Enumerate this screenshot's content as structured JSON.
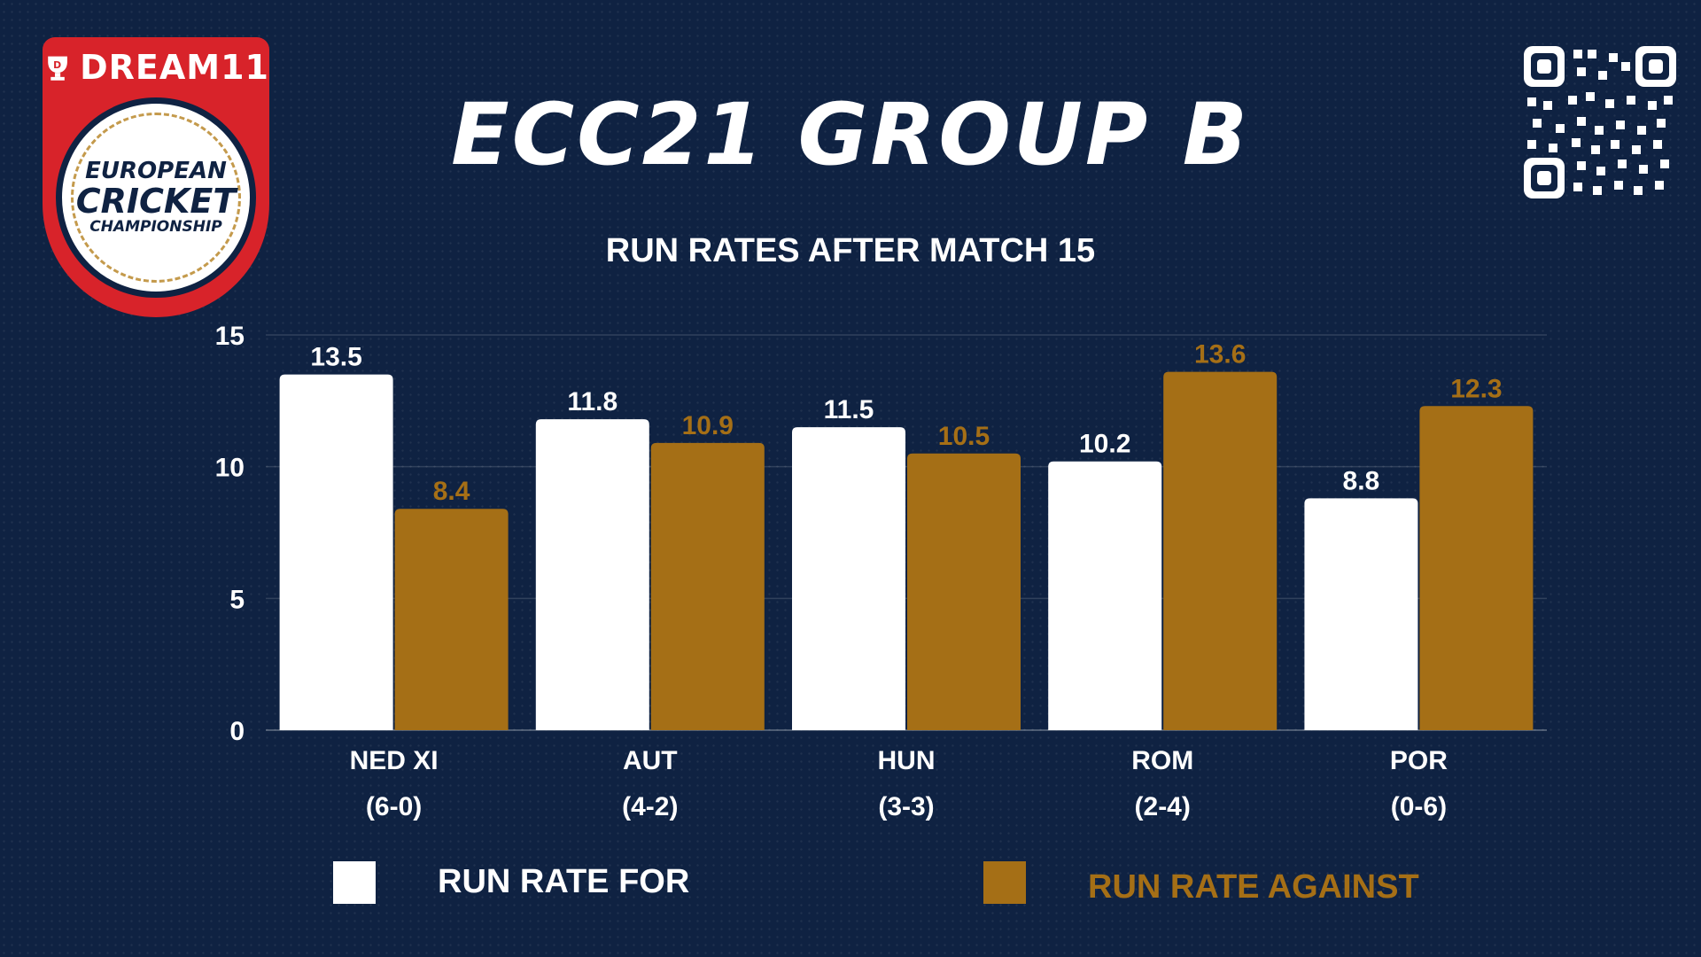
{
  "brand": {
    "name": "DREAM11",
    "badge_line1": "EUROPEAN",
    "badge_line2": "CRICKET",
    "badge_line3": "CHAMPIONSHIP"
  },
  "title": "ECC21 GROUP B",
  "subtitle": "RUN RATES AFTER MATCH 15",
  "colors": {
    "background": "#0f2242",
    "run_rate_for": "#ffffff",
    "run_rate_against": "#a56f16",
    "brand_red": "#d8232a"
  },
  "chart_data": {
    "type": "bar",
    "categories": [
      "NED XI",
      "AUT",
      "HUN",
      "ROM",
      "POR"
    ],
    "category_records": [
      "(6-0)",
      "(4-2)",
      "(3-3)",
      "(2-4)",
      "(0-6)"
    ],
    "series": [
      {
        "name": "RUN RATE FOR",
        "color": "#ffffff",
        "values": [
          13.5,
          11.8,
          11.5,
          10.2,
          8.8
        ]
      },
      {
        "name": "RUN RATE AGAINST",
        "color": "#a56f16",
        "values": [
          8.4,
          10.9,
          10.5,
          13.6,
          12.3
        ]
      }
    ],
    "ylim": [
      0,
      15
    ],
    "yticks": [
      0,
      5,
      10,
      15
    ],
    "grid": true,
    "legend": "bottom"
  },
  "icons": {
    "logo": "dream11-european-cricket-championship-logo",
    "qr": "qr-code-icon"
  }
}
